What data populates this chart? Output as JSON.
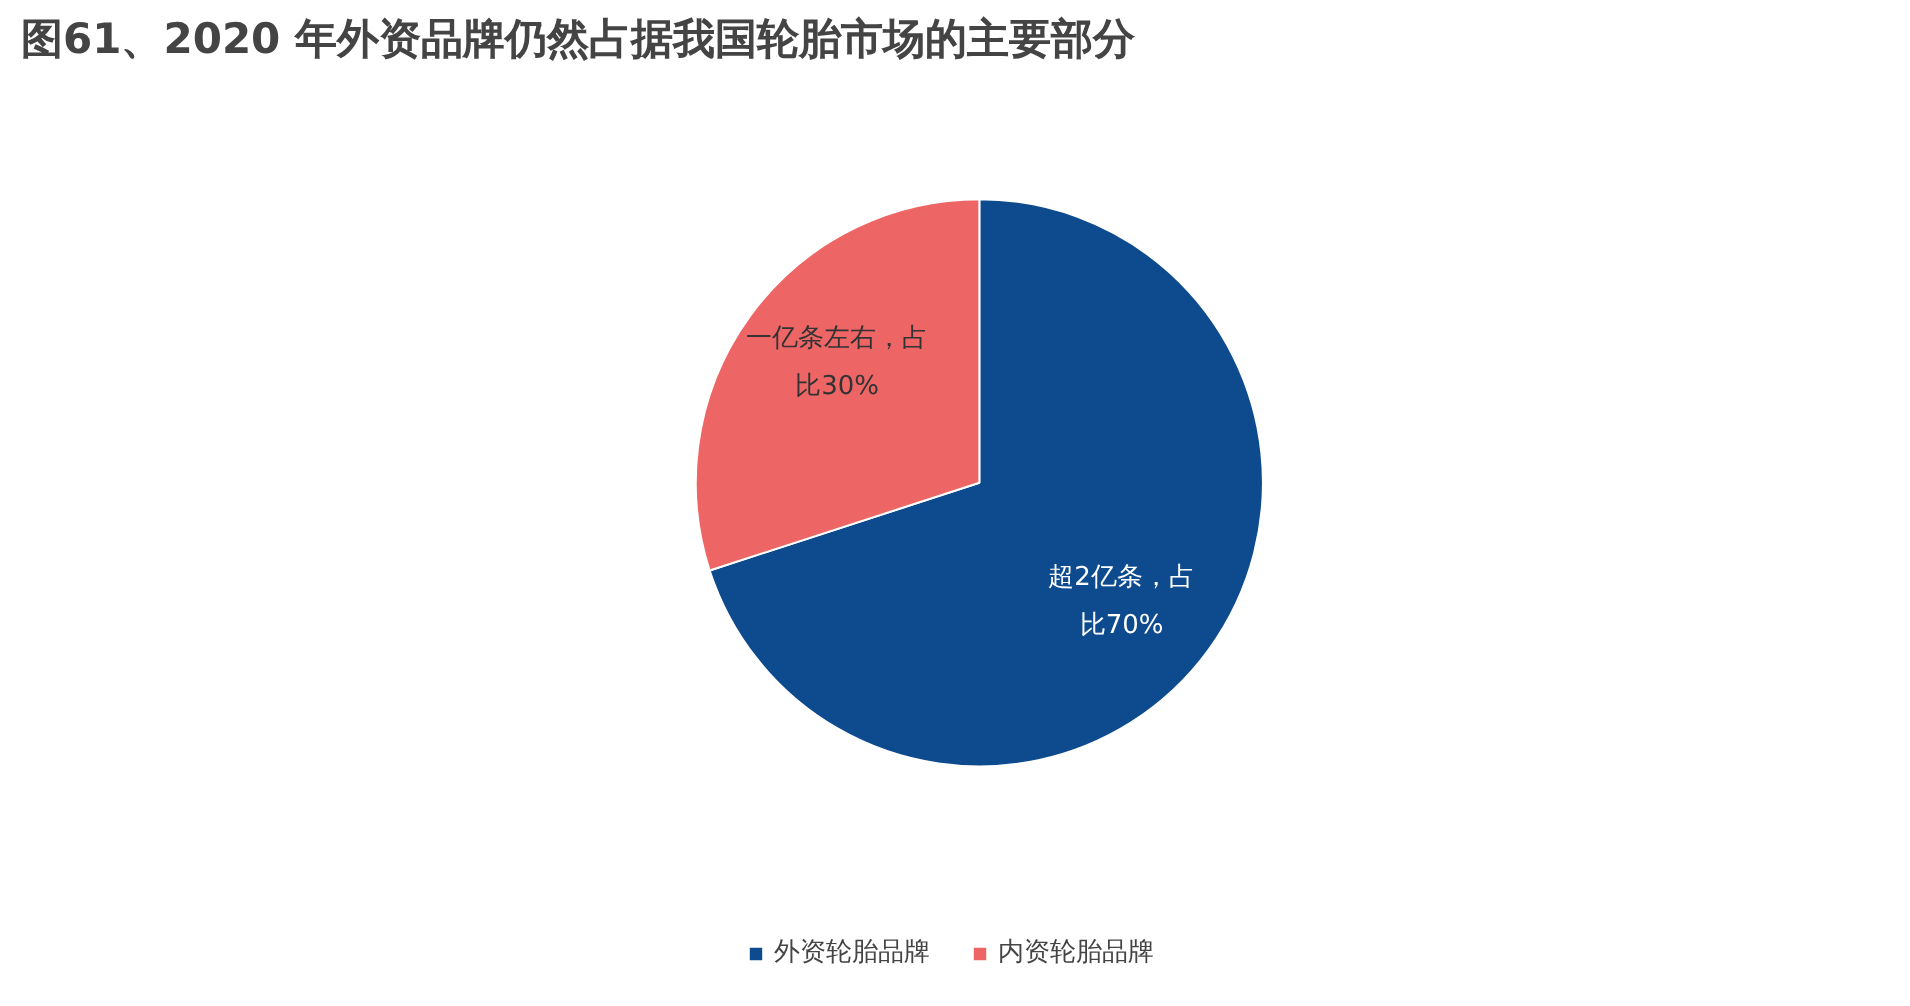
{
  "chart_data": {
    "type": "pie",
    "title": "图61、2020 年外资品牌仍然占据我国轮胎市场的主要部分",
    "categories": [
      "外资轮胎品牌",
      "内资轮胎品牌"
    ],
    "values": [
      70,
      30
    ],
    "colors": [
      "#0d4a8e",
      "#ee6565"
    ],
    "value_labels": [
      "超2亿条，占比70%",
      "一亿条左右，占比30%"
    ],
    "legend": "bottom"
  }
}
